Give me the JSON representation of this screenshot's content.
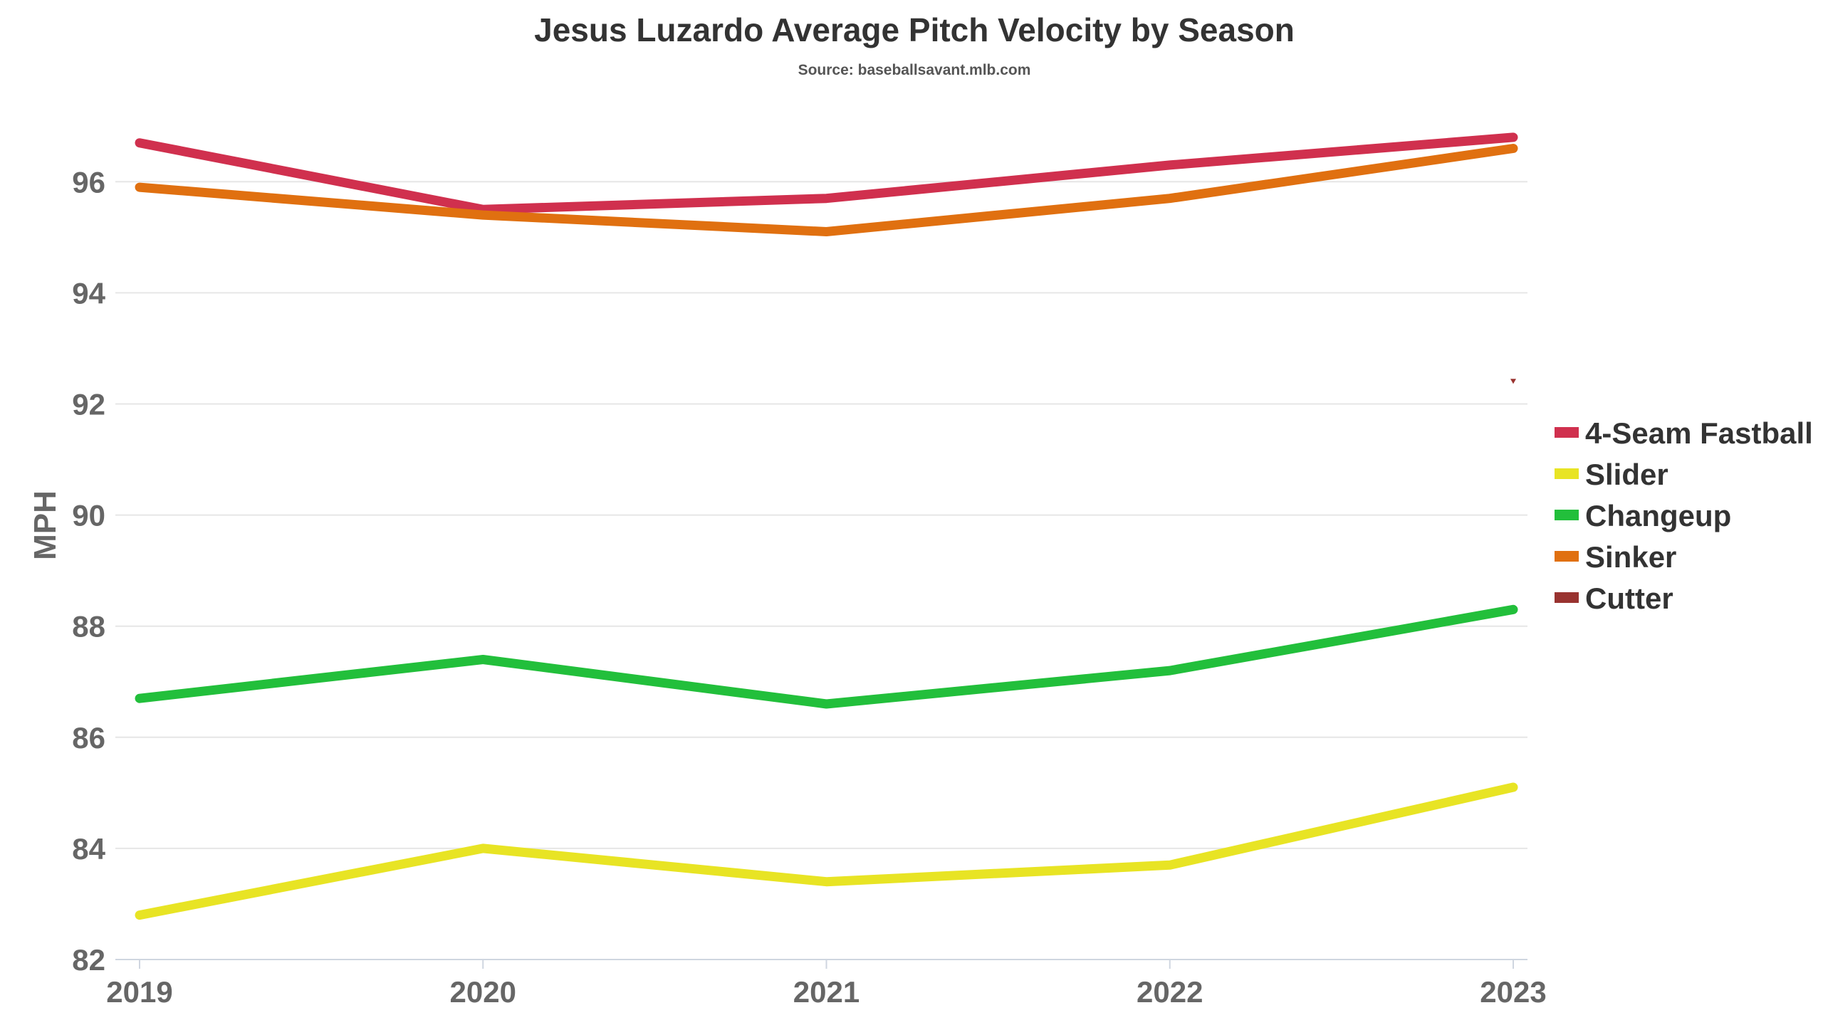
{
  "chart_data": {
    "type": "line",
    "title": "Jesus Luzardo Average Pitch Velocity by Season",
    "subtitle": "Source: baseballsavant.mlb.com",
    "xlabel": "",
    "ylabel": "MPH",
    "x": [
      "2019",
      "2020",
      "2021",
      "2022",
      "2023"
    ],
    "ylim": [
      82,
      97.5
    ],
    "yticks": [
      82,
      84,
      86,
      88,
      90,
      92,
      94,
      96
    ],
    "grid": true,
    "legend_position": "right",
    "series": [
      {
        "name": "4-Seam Fastball",
        "color": "#d0304e",
        "values": [
          96.7,
          95.5,
          95.7,
          96.3,
          96.8
        ]
      },
      {
        "name": "Slider",
        "color": "#e8e424",
        "values": [
          82.8,
          84.0,
          83.4,
          83.7,
          85.1
        ]
      },
      {
        "name": "Changeup",
        "color": "#22bf3b",
        "values": [
          86.7,
          87.4,
          86.6,
          87.2,
          88.3
        ]
      },
      {
        "name": "Sinker",
        "color": "#e07010",
        "values": [
          95.9,
          95.4,
          95.1,
          95.7,
          96.6
        ]
      },
      {
        "name": "Cutter",
        "color": "#993330",
        "values": [
          null,
          null,
          null,
          null,
          92.4
        ]
      }
    ]
  }
}
